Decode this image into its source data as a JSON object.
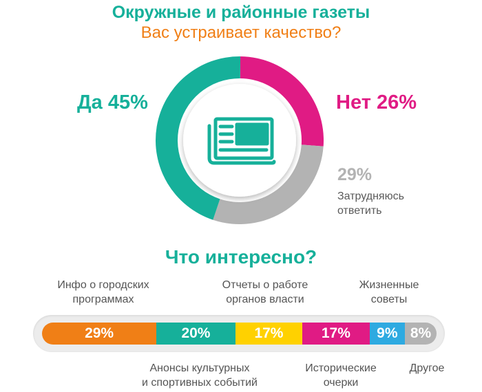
{
  "title": "Окружные и районные газеты",
  "subtitle": "Вас устраивает качество?",
  "colors": {
    "teal": "#16b09a",
    "magenta": "#e01b84",
    "gray": "#b3b3b3",
    "orange": "#f07f16",
    "yellow": "#ffd100",
    "blue": "#2eaae1"
  },
  "center_icon": "newspaper-icon",
  "chart_data": [
    {
      "type": "pie",
      "title": "Вас устраивает качество?",
      "slices": [
        {
          "label": "Да",
          "value": 45,
          "value_label": "45%",
          "color": "#16b09a"
        },
        {
          "label": "Нет",
          "value": 26,
          "value_label": "26%",
          "color": "#e01b84"
        },
        {
          "label": "Затрудняюсь ответить",
          "value": 29,
          "value_label": "29%",
          "color": "#b3b3b3"
        }
      ]
    },
    {
      "type": "bar",
      "title": "Что интересно?",
      "stacked": true,
      "categories": [
        "Инфо о городских программах",
        "Анонсы культурных и спортивных событий",
        "Отчеты о работе органов власти",
        "Исторические очерки",
        "Жизненные советы",
        "Другое"
      ],
      "values": [
        29,
        20,
        17,
        17,
        9,
        8
      ],
      "value_labels": [
        "29%",
        "20%",
        "17%",
        "17%",
        "9%",
        "8%"
      ],
      "colors": [
        "#f07f16",
        "#16b09a",
        "#ffd100",
        "#e01b84",
        "#2eaae1",
        "#b3b3b3"
      ]
    }
  ],
  "labels": {
    "yes": "Да 45%",
    "no": "Нет 26%",
    "unsure_pct": "29%",
    "unsure_line1": "Затрудняюсь",
    "unsure_line2": "ответить"
  },
  "question2": "Что интересно?",
  "categories_text": {
    "city_programs": [
      "Инфо о городских",
      "программах"
    ],
    "reports": [
      "Отчеты о работе",
      "органов власти"
    ],
    "life_advice": [
      "Жизненные",
      "советы"
    ],
    "culture_sport": [
      "Анонсы культурных",
      "и спортивных событий"
    ],
    "historical": [
      "Исторические",
      "очерки"
    ],
    "other": [
      "Другое"
    ]
  }
}
